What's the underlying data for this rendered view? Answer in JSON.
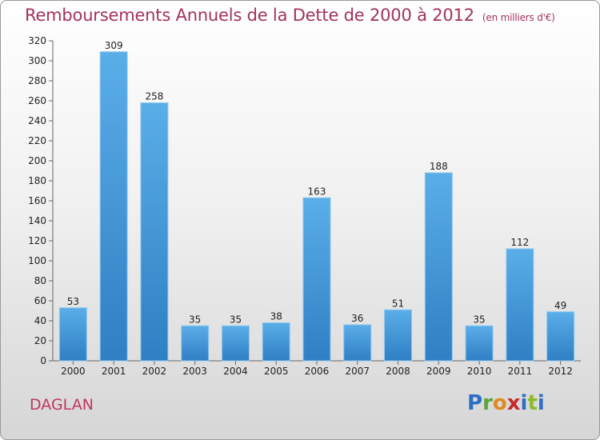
{
  "title": "Remboursements Annuels de la Dette de 2000 à 2012",
  "unit": "(en milliers d'€)",
  "commune": "DAGLAN",
  "logo_letters": [
    "P",
    "r",
    "o",
    "x",
    "i",
    "t",
    "i"
  ],
  "colors": {
    "bar": "#4a9de0",
    "bar_dark": "#2f7fc4",
    "title": "#a3325e"
  },
  "chart_data": {
    "type": "bar",
    "title": "Remboursements Annuels de la Dette de 2000 à 2012",
    "xlabel": "",
    "ylabel": "",
    "categories": [
      "2000",
      "2001",
      "2002",
      "2003",
      "2004",
      "2005",
      "2006",
      "2007",
      "2008",
      "2009",
      "2010",
      "2011",
      "2012"
    ],
    "values": [
      53,
      309,
      258,
      35,
      35,
      38,
      163,
      36,
      51,
      188,
      35,
      112,
      49
    ],
    "ylim": [
      0,
      320
    ],
    "yticks": [
      0,
      20,
      40,
      60,
      80,
      100,
      120,
      140,
      160,
      180,
      200,
      220,
      240,
      260,
      280,
      300,
      320
    ],
    "grid": false
  }
}
